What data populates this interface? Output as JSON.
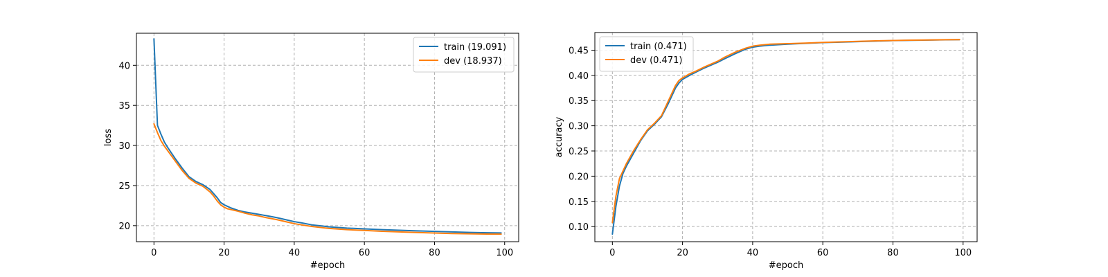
{
  "chart_data": [
    {
      "type": "line",
      "xlabel": "#epoch",
      "ylabel": "loss",
      "xlim": [
        -5,
        104
      ],
      "ylim": [
        18,
        44
      ],
      "xticks": [
        0,
        20,
        40,
        60,
        80,
        100
      ],
      "yticks": [
        20,
        25,
        30,
        35,
        40
      ],
      "grid": true,
      "legend_placement": "top-right",
      "series": [
        {
          "name": "train (19.091)",
          "color": "#1f77b4",
          "x": [
            0,
            1,
            2,
            3,
            4,
            6,
            8,
            10,
            12,
            14,
            16,
            17,
            18,
            19,
            20,
            21,
            22,
            24,
            26,
            28,
            30,
            32,
            35,
            38,
            40,
            42,
            45,
            48,
            50,
            55,
            60,
            65,
            70,
            75,
            80,
            85,
            90,
            95,
            99
          ],
          "y": [
            43.3,
            32.5,
            31.4,
            30.4,
            29.7,
            28.4,
            27.2,
            26.1,
            25.5,
            25.1,
            24.5,
            24.0,
            23.5,
            22.9,
            22.6,
            22.4,
            22.2,
            21.9,
            21.7,
            21.55,
            21.4,
            21.25,
            21.0,
            20.7,
            20.5,
            20.35,
            20.1,
            19.95,
            19.85,
            19.7,
            19.6,
            19.5,
            19.42,
            19.35,
            19.28,
            19.22,
            19.16,
            19.11,
            19.09
          ]
        },
        {
          "name": "dev (18.937)",
          "color": "#ff7f0e",
          "x": [
            0,
            1,
            2,
            3,
            4,
            6,
            8,
            10,
            12,
            14,
            16,
            17,
            18,
            19,
            20,
            21,
            22,
            24,
            26,
            28,
            30,
            32,
            35,
            38,
            40,
            42,
            45,
            48,
            50,
            55,
            60,
            65,
            70,
            75,
            80,
            85,
            90,
            95,
            99
          ],
          "y": [
            32.7,
            31.6,
            30.6,
            29.9,
            29.3,
            28.1,
            26.9,
            25.9,
            25.3,
            24.9,
            24.2,
            23.7,
            23.1,
            22.6,
            22.3,
            22.1,
            22.0,
            21.8,
            21.55,
            21.35,
            21.2,
            21.0,
            20.75,
            20.45,
            20.25,
            20.1,
            19.9,
            19.75,
            19.65,
            19.5,
            19.4,
            19.3,
            19.22,
            19.15,
            19.08,
            19.02,
            18.98,
            18.95,
            18.94
          ]
        }
      ]
    },
    {
      "type": "line",
      "xlabel": "#epoch",
      "ylabel": "accuracy",
      "xlim": [
        -5,
        104
      ],
      "ylim": [
        0.07,
        0.485
      ],
      "xticks": [
        0,
        20,
        40,
        60,
        80,
        100
      ],
      "yticks": [
        0.1,
        0.15,
        0.2,
        0.25,
        0.3,
        0.35,
        0.4,
        0.45
      ],
      "ytick_labels": [
        "0.10",
        "0.15",
        "0.20",
        "0.25",
        "0.30",
        "0.35",
        "0.40",
        "0.45"
      ],
      "grid": true,
      "legend_placement": "top-left",
      "series": [
        {
          "name": "train (0.471)",
          "color": "#1f77b4",
          "x": [
            0,
            1,
            2,
            3,
            4,
            6,
            8,
            10,
            12,
            14,
            16,
            18,
            19,
            20,
            22,
            24,
            26,
            28,
            30,
            32,
            35,
            38,
            40,
            42,
            45,
            50,
            55,
            60,
            65,
            70,
            75,
            80,
            85,
            90,
            95,
            99
          ],
          "y": [
            0.085,
            0.14,
            0.18,
            0.205,
            0.22,
            0.245,
            0.27,
            0.29,
            0.303,
            0.318,
            0.345,
            0.375,
            0.385,
            0.392,
            0.4,
            0.407,
            0.414,
            0.42,
            0.426,
            0.433,
            0.443,
            0.452,
            0.456,
            0.458,
            0.46,
            0.462,
            0.4635,
            0.465,
            0.466,
            0.467,
            0.468,
            0.469,
            0.4695,
            0.47,
            0.4705,
            0.471
          ]
        },
        {
          "name": "dev (0.471)",
          "color": "#ff7f0e",
          "x": [
            0,
            1,
            2,
            3,
            4,
            6,
            8,
            10,
            12,
            14,
            16,
            18,
            19,
            20,
            22,
            24,
            26,
            28,
            30,
            32,
            35,
            38,
            40,
            42,
            45,
            50,
            55,
            60,
            65,
            70,
            75,
            80,
            85,
            90,
            95,
            99
          ],
          "y": [
            0.108,
            0.16,
            0.195,
            0.21,
            0.225,
            0.25,
            0.272,
            0.292,
            0.305,
            0.32,
            0.35,
            0.38,
            0.39,
            0.395,
            0.403,
            0.409,
            0.416,
            0.422,
            0.428,
            0.436,
            0.446,
            0.454,
            0.458,
            0.46,
            0.462,
            0.463,
            0.464,
            0.4655,
            0.4665,
            0.4675,
            0.4685,
            0.4692,
            0.4698,
            0.4703,
            0.4707,
            0.471
          ]
        }
      ]
    }
  ]
}
